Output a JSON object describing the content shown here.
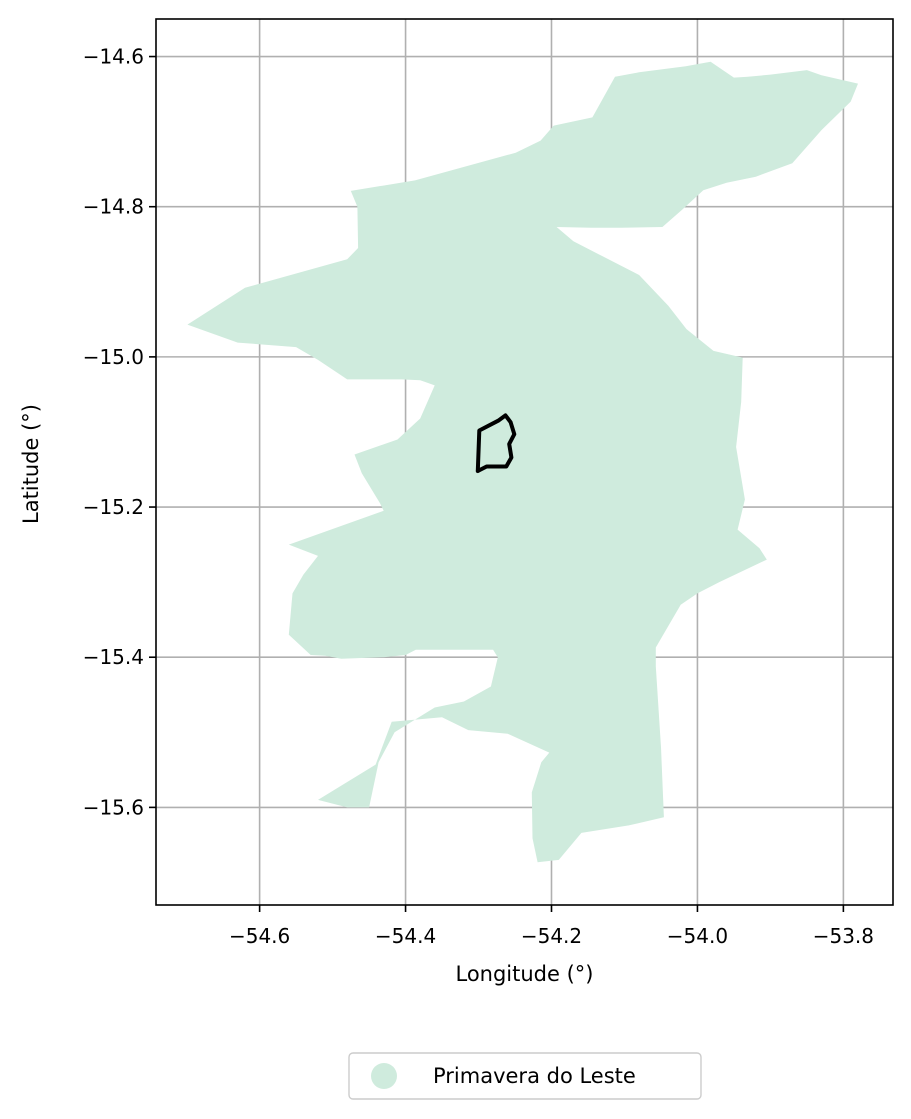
{
  "chart_data": {
    "type": "map",
    "xlabel": "Longitude (°)",
    "ylabel": "Latitude (°)",
    "xlim": [
      -54.742,
      -53.732
    ],
    "ylim": [
      -15.73,
      -14.55
    ],
    "xticks": [
      -54.6,
      -54.4,
      -54.2,
      -54.0,
      -53.8
    ],
    "xtick_labels": [
      "−54.6",
      "−54.4",
      "−54.2",
      "−54.0",
      "−53.8"
    ],
    "yticks": [
      -14.6,
      -14.8,
      -15.0,
      -15.2,
      -15.4,
      -15.6
    ],
    "ytick_labels": [
      "−14.6",
      "−14.8",
      "−15.0",
      "−15.2",
      "−15.4",
      "−15.6"
    ],
    "grid": true,
    "legend_position": "bottom-center",
    "legend": [
      {
        "label": "Primavera do Leste",
        "color": "#cfebdd",
        "marker": "circle"
      }
    ],
    "layers": [
      {
        "name": "Primavera do Leste",
        "type": "polygon",
        "fill": "#cfebdd",
        "coordinates": [
          [
            -54.699,
            -14.957
          ],
          [
            -54.62,
            -14.908
          ],
          [
            -54.48,
            -14.87
          ],
          [
            -54.465,
            -14.855
          ],
          [
            -54.466,
            -14.8
          ],
          [
            -54.475,
            -14.779
          ],
          [
            -54.387,
            -14.765
          ],
          [
            -54.249,
            -14.728
          ],
          [
            -54.215,
            -14.712
          ],
          [
            -54.197,
            -14.692
          ],
          [
            -54.144,
            -14.681
          ],
          [
            -54.113,
            -14.627
          ],
          [
            -54.08,
            -14.621
          ],
          [
            -54.016,
            -14.613
          ],
          [
            -53.982,
            -14.607
          ],
          [
            -53.95,
            -14.628
          ],
          [
            -53.931,
            -14.627
          ],
          [
            -53.9,
            -14.624
          ],
          [
            -53.85,
            -14.618
          ],
          [
            -53.83,
            -14.625
          ],
          [
            -53.78,
            -14.636
          ],
          [
            -53.79,
            -14.66
          ],
          [
            -53.83,
            -14.698
          ],
          [
            -53.87,
            -14.742
          ],
          [
            -53.92,
            -14.76
          ],
          [
            -53.96,
            -14.768
          ],
          [
            -53.992,
            -14.778
          ],
          [
            -54.021,
            -14.804
          ],
          [
            -54.048,
            -14.827
          ],
          [
            -54.105,
            -14.828
          ],
          [
            -54.145,
            -14.828
          ],
          [
            -54.193,
            -14.827
          ],
          [
            -54.17,
            -14.846
          ],
          [
            -54.13,
            -14.866
          ],
          [
            -54.08,
            -14.891
          ],
          [
            -54.04,
            -14.932
          ],
          [
            -54.015,
            -14.963
          ],
          [
            -53.978,
            -14.992
          ],
          [
            -53.938,
            -15.001
          ],
          [
            -53.94,
            -15.06
          ],
          [
            -53.947,
            -15.12
          ],
          [
            -53.935,
            -15.19
          ],
          [
            -53.945,
            -15.23
          ],
          [
            -53.915,
            -15.255
          ],
          [
            -53.905,
            -15.27
          ],
          [
            -53.97,
            -15.3
          ],
          [
            -54.0,
            -15.315
          ],
          [
            -54.023,
            -15.33
          ],
          [
            -54.057,
            -15.387
          ],
          [
            -54.057,
            -15.412
          ],
          [
            -54.05,
            -15.52
          ],
          [
            -54.046,
            -15.613
          ],
          [
            -54.094,
            -15.624
          ],
          [
            -54.159,
            -15.634
          ],
          [
            -54.19,
            -15.67
          ],
          [
            -54.219,
            -15.673
          ],
          [
            -54.226,
            -15.641
          ],
          [
            -54.227,
            -15.58
          ],
          [
            -54.214,
            -15.54
          ],
          [
            -54.203,
            -15.527
          ],
          [
            -54.26,
            -15.502
          ],
          [
            -54.314,
            -15.497
          ],
          [
            -54.35,
            -15.48
          ],
          [
            -54.419,
            -15.486
          ],
          [
            -54.441,
            -15.543
          ],
          [
            -54.52,
            -15.59
          ],
          [
            -54.48,
            -15.6
          ],
          [
            -54.45,
            -15.6
          ],
          [
            -54.437,
            -15.54
          ],
          [
            -54.415,
            -15.5
          ],
          [
            -54.36,
            -15.467
          ],
          [
            -54.32,
            -15.459
          ],
          [
            -54.283,
            -15.439
          ],
          [
            -54.273,
            -15.398
          ],
          [
            -54.295,
            -15.368
          ],
          [
            -54.311,
            -15.359
          ],
          [
            -54.3,
            -15.358
          ],
          [
            -54.267,
            -15.355
          ],
          [
            -54.241,
            -15.38
          ],
          [
            -54.22,
            -15.43
          ],
          [
            -54.226,
            -15.475
          ],
          [
            -54.28,
            -15.39
          ],
          [
            -54.386,
            -15.39
          ],
          [
            -54.4,
            -15.397
          ],
          [
            -54.43,
            -15.4
          ],
          [
            -54.488,
            -15.402
          ],
          [
            -54.51,
            -15.398
          ],
          [
            -54.53,
            -15.397
          ],
          [
            -54.56,
            -15.37
          ],
          [
            -54.555,
            -15.315
          ],
          [
            -54.54,
            -15.29
          ],
          [
            -54.52,
            -15.265
          ],
          [
            -54.56,
            -15.25
          ],
          [
            -54.43,
            -15.205
          ],
          [
            -54.435,
            -15.195
          ],
          [
            -54.46,
            -15.155
          ],
          [
            -54.47,
            -15.13
          ],
          [
            -54.411,
            -15.11
          ],
          [
            -54.38,
            -15.082
          ],
          [
            -54.36,
            -15.038
          ],
          [
            -54.38,
            -15.031
          ],
          [
            -54.405,
            -15.03
          ],
          [
            -54.48,
            -15.03
          ],
          [
            -54.52,
            -15.004
          ],
          [
            -54.55,
            -14.987
          ],
          [
            -54.63,
            -14.981
          ],
          [
            -54.699,
            -14.957
          ]
        ]
      },
      {
        "name": "outline",
        "type": "polyline",
        "stroke": "#000000",
        "coordinates": [
          [
            -54.301,
            -15.152
          ],
          [
            -54.299,
            -15.098
          ],
          [
            -54.273,
            -15.085
          ],
          [
            -54.263,
            -15.078
          ],
          [
            -54.256,
            -15.087
          ],
          [
            -54.251,
            -15.103
          ],
          [
            -54.258,
            -15.116
          ],
          [
            -54.255,
            -15.134
          ],
          [
            -54.262,
            -15.146
          ],
          [
            -54.289,
            -15.146
          ],
          [
            -54.301,
            -15.152
          ]
        ]
      }
    ]
  }
}
